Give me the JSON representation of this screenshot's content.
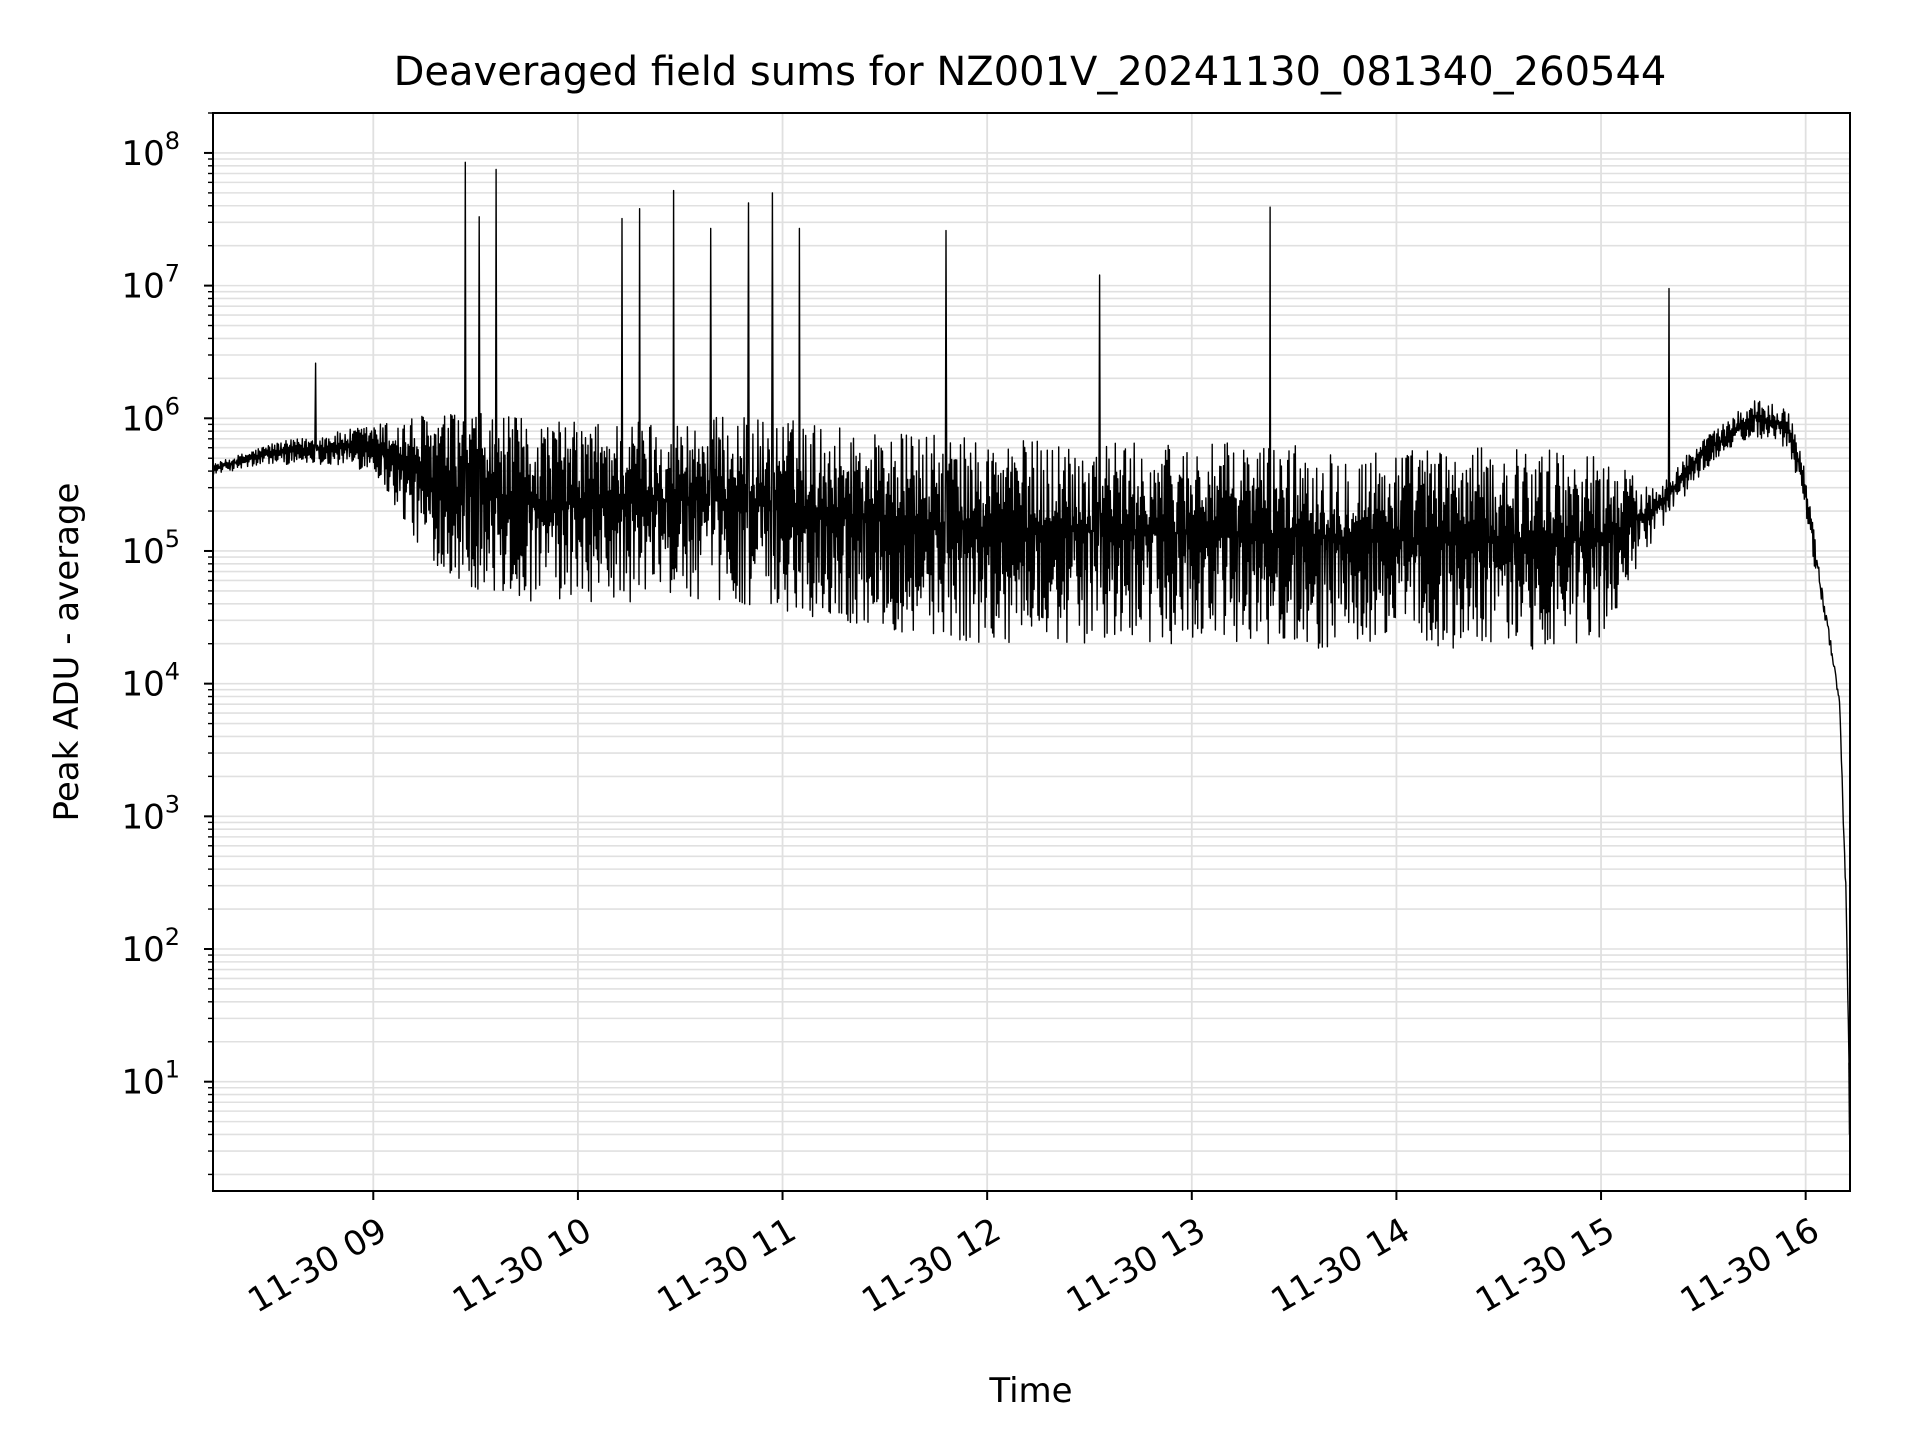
{
  "chart_data": {
    "type": "line",
    "title": "Deaveraged field sums for NZ001V_20241130_081340_260544",
    "xlabel": "Time",
    "ylabel": "Peak ADU - average",
    "yscale": "log",
    "grid": true,
    "line_color": "#000000",
    "grid_color": "#e0e0e0",
    "x_ticks": [
      "11-30 09",
      "11-30 10",
      "11-30 11",
      "11-30 12",
      "11-30 13",
      "11-30 14",
      "11-30 15",
      "11-30 16"
    ],
    "x_tick_hours": [
      9,
      10,
      11,
      12,
      13,
      14,
      15,
      16
    ],
    "y_tick_labels": [
      "10^1",
      "10^2",
      "10^3",
      "10^4",
      "10^5",
      "10^6",
      "10^7",
      "10^8"
    ],
    "y_tick_exponents": [
      1,
      2,
      3,
      4,
      5,
      6,
      7,
      8
    ],
    "xlim": [
      "2024-11-30 08:13",
      "2024-11-30 16:13"
    ],
    "ylim": [
      1.5,
      200000000
    ],
    "series": [
      {
        "x": [
          "08:13",
          "08:30",
          "08:45",
          "09:00",
          "09:15",
          "09:30",
          "09:45",
          "10:00",
          "10:15",
          "10:30",
          "10:45",
          "11:00",
          "11:15",
          "11:30",
          "11:45",
          "12:00",
          "12:15",
          "12:30",
          "12:45",
          "13:00",
          "13:15",
          "13:30",
          "13:45",
          "14:00",
          "14:15",
          "14:30",
          "14:45",
          "15:00",
          "15:15",
          "15:30",
          "15:45",
          "15:55",
          "16:00",
          "16:05",
          "16:08",
          "16:10",
          "16:12",
          "16:13"
        ],
        "y_upper": [
          450000,
          650000,
          750000,
          900000,
          1100000,
          1100000,
          1000000,
          950000,
          1000000,
          1000000,
          1050000,
          1000000,
          900000,
          800000,
          750000,
          700000,
          700000,
          700000,
          650000,
          650000,
          650000,
          650000,
          600000,
          600000,
          600000,
          600000,
          600000,
          550000,
          300000,
          700000,
          1400000,
          1200000,
          400000,
          60000,
          20000,
          8000,
          300,
          5
        ],
        "y_lower": [
          380000,
          450000,
          450000,
          400000,
          90000,
          50000,
          40000,
          40000,
          40000,
          45000,
          40000,
          35000,
          30000,
          25000,
          22000,
          20000,
          20000,
          20000,
          20000,
          20000,
          20000,
          19000,
          18000,
          18000,
          18000,
          18000,
          18000,
          20000,
          120000,
          400000,
          700000,
          600000,
          200000,
          30000,
          12000,
          6000,
          100,
          4
        ]
      }
    ],
    "spikes": [
      {
        "t": "08:43",
        "y": 2600000
      },
      {
        "t": "09:27",
        "y": 85000000
      },
      {
        "t": "09:31",
        "y": 33000000
      },
      {
        "t": "09:36",
        "y": 75000000
      },
      {
        "t": "10:13",
        "y": 32000000
      },
      {
        "t": "10:18",
        "y": 38000000
      },
      {
        "t": "10:28",
        "y": 52000000
      },
      {
        "t": "10:39",
        "y": 27000000
      },
      {
        "t": "10:50",
        "y": 42000000
      },
      {
        "t": "10:57",
        "y": 50000000
      },
      {
        "t": "11:05",
        "y": 27000000
      },
      {
        "t": "11:48",
        "y": 26000000
      },
      {
        "t": "12:33",
        "y": 12000000
      },
      {
        "t": "13:23",
        "y": 39000000
      },
      {
        "t": "15:20",
        "y": 9500000
      }
    ]
  }
}
